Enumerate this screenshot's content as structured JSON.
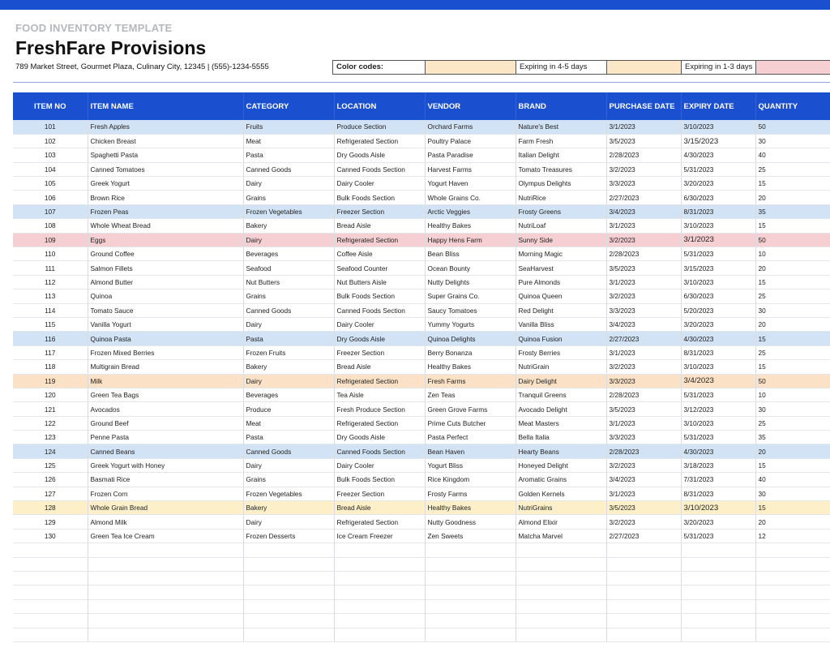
{
  "header": {
    "template_label": "FOOD INVENTORY TEMPLATE",
    "company": "FreshFare Provisions",
    "address": "789 Market Street, Gourmet Plaza, Culinary City, 12345 | (555)-1234-5555"
  },
  "legend": {
    "title": "Color codes:",
    "expiring_4_5": "Expiring in 4-5 days",
    "expiring_1_3": "Expiring in 1-3 days",
    "colors": {
      "expiring_4_5": "#fbe6c6",
      "expiring_1_3": "#f6cfd2"
    }
  },
  "table": {
    "columns": [
      "ITEM NO",
      "ITEM NAME",
      "CATEGORY",
      "LOCATION",
      "VENDOR",
      "BRAND",
      "PURCHASE DATE",
      "EXPIRY DATE",
      "QUANTITY"
    ],
    "rows": [
      {
        "id": "101",
        "name": "Fresh Apples",
        "category": "Fruits",
        "location": "Produce Section",
        "vendor": "Orchard Farms",
        "brand": "Nature's Best",
        "purchase": "3/1/2023",
        "expiry": "3/10/2023",
        "qty": "50",
        "highlight": "blue"
      },
      {
        "id": "102",
        "name": "Chicken Breast",
        "category": "Meat",
        "location": "Refrigerated Section",
        "vendor": "Poultry Palace",
        "brand": "Farm Fresh",
        "purchase": "3/5/2023",
        "expiry": "3/15/2023",
        "qty": "30",
        "highlight": ""
      },
      {
        "id": "103",
        "name": "Spaghetti Pasta",
        "category": "Pasta",
        "location": "Dry Goods Aisle",
        "vendor": "Pasta Paradise",
        "brand": "Italian Delight",
        "purchase": "2/28/2023",
        "expiry": "4/30/2023",
        "qty": "40",
        "highlight": ""
      },
      {
        "id": "104",
        "name": "Canned Tomatoes",
        "category": "Canned Goods",
        "location": "Canned Foods Section",
        "vendor": "Harvest Farms",
        "brand": "Tomato Treasures",
        "purchase": "3/2/2023",
        "expiry": "5/31/2023",
        "qty": "25",
        "highlight": ""
      },
      {
        "id": "105",
        "name": "Greek Yogurt",
        "category": "Dairy",
        "location": "Dairy Cooler",
        "vendor": "Yogurt Haven",
        "brand": "Olympus Delights",
        "purchase": "3/3/2023",
        "expiry": "3/20/2023",
        "qty": "15",
        "highlight": ""
      },
      {
        "id": "106",
        "name": "Brown Rice",
        "category": "Grains",
        "location": "Bulk Foods Section",
        "vendor": "Whole Grains Co.",
        "brand": "NutriRice",
        "purchase": "2/27/2023",
        "expiry": "6/30/2023",
        "qty": "20",
        "highlight": ""
      },
      {
        "id": "107",
        "name": "Frozen Peas",
        "category": "Frozen Vegetables",
        "location": "Freezer Section",
        "vendor": "Arctic Veggies",
        "brand": "Frosty Greens",
        "purchase": "3/4/2023",
        "expiry": "8/31/2023",
        "qty": "35",
        "highlight": "blue"
      },
      {
        "id": "108",
        "name": "Whole Wheat Bread",
        "category": "Bakery",
        "location": "Bread Aisle",
        "vendor": "Healthy Bakes",
        "brand": "NutriLoaf",
        "purchase": "3/1/2023",
        "expiry": "3/10/2023",
        "qty": "15",
        "highlight": ""
      },
      {
        "id": "109",
        "name": "Eggs",
        "category": "Dairy",
        "location": "Refrigerated Section",
        "vendor": "Happy Hens Farm",
        "brand": "Sunny Side",
        "purchase": "3/2/2023",
        "expiry": "3/1/2023",
        "qty": "50",
        "highlight": "red"
      },
      {
        "id": "110",
        "name": "Ground Coffee",
        "category": "Beverages",
        "location": "Coffee Aisle",
        "vendor": "Bean Bliss",
        "brand": "Morning Magic",
        "purchase": "2/28/2023",
        "expiry": "5/31/2023",
        "qty": "10",
        "highlight": ""
      },
      {
        "id": "111",
        "name": "Salmon Fillets",
        "category": "Seafood",
        "location": "Seafood Counter",
        "vendor": "Ocean Bounty",
        "brand": "SeaHarvest",
        "purchase": "3/5/2023",
        "expiry": "3/15/2023",
        "qty": "20",
        "highlight": ""
      },
      {
        "id": "112",
        "name": "Almond Butter",
        "category": "Nut Butters",
        "location": "Nut Butters Aisle",
        "vendor": "Nutty Delights",
        "brand": "Pure Almonds",
        "purchase": "3/1/2023",
        "expiry": "3/10/2023",
        "qty": "15",
        "highlight": ""
      },
      {
        "id": "113",
        "name": "Quinoa",
        "category": "Grains",
        "location": "Bulk Foods Section",
        "vendor": "Super Grains Co.",
        "brand": "Quinoa Queen",
        "purchase": "3/2/2023",
        "expiry": "6/30/2023",
        "qty": "25",
        "highlight": ""
      },
      {
        "id": "114",
        "name": "Tomato Sauce",
        "category": "Canned Goods",
        "location": "Canned Foods Section",
        "vendor": "Saucy Tomatoes",
        "brand": "Red Delight",
        "purchase": "3/3/2023",
        "expiry": "5/20/2023",
        "qty": "30",
        "highlight": ""
      },
      {
        "id": "115",
        "name": "Vanilla Yogurt",
        "category": "Dairy",
        "location": "Dairy Cooler",
        "vendor": "Yummy Yogurts",
        "brand": "Vanilla Bliss",
        "purchase": "3/4/2023",
        "expiry": "3/20/2023",
        "qty": "20",
        "highlight": ""
      },
      {
        "id": "116",
        "name": "Quinoa Pasta",
        "category": "Pasta",
        "location": "Dry Goods Aisle",
        "vendor": "Quinoa Delights",
        "brand": "Quinoa Fusion",
        "purchase": "2/27/2023",
        "expiry": "4/30/2023",
        "qty": "15",
        "highlight": "blue"
      },
      {
        "id": "117",
        "name": "Frozen Mixed Berries",
        "category": "Frozen Fruits",
        "location": "Freezer Section",
        "vendor": "Berry Bonanza",
        "brand": "Frosty Berries",
        "purchase": "3/1/2023",
        "expiry": "8/31/2023",
        "qty": "25",
        "highlight": ""
      },
      {
        "id": "118",
        "name": "Multigrain Bread",
        "category": "Bakery",
        "location": "Bread Aisle",
        "vendor": "Healthy Bakes",
        "brand": "NutriGrain",
        "purchase": "3/2/2023",
        "expiry": "3/10/2023",
        "qty": "15",
        "highlight": ""
      },
      {
        "id": "119",
        "name": "Milk",
        "category": "Dairy",
        "location": "Refrigerated Section",
        "vendor": "Fresh Farms",
        "brand": "Dairy Delight",
        "purchase": "3/3/2023",
        "expiry": "3/4/2023",
        "qty": "50",
        "highlight": "orange"
      },
      {
        "id": "120",
        "name": "Green Tea Bags",
        "category": "Beverages",
        "location": "Tea Aisle",
        "vendor": "Zen Teas",
        "brand": "Tranquil Greens",
        "purchase": "2/28/2023",
        "expiry": "5/31/2023",
        "qty": "10",
        "highlight": ""
      },
      {
        "id": "121",
        "name": "Avocados",
        "category": "Produce",
        "location": "Fresh Produce Section",
        "vendor": "Green Grove Farms",
        "brand": "Avocado Delight",
        "purchase": "3/5/2023",
        "expiry": "3/12/2023",
        "qty": "30",
        "highlight": ""
      },
      {
        "id": "122",
        "name": "Ground Beef",
        "category": "Meat",
        "location": "Refrigerated Section",
        "vendor": "Prime Cuts Butcher",
        "brand": "Meat Masters",
        "purchase": "3/1/2023",
        "expiry": "3/10/2023",
        "qty": "25",
        "highlight": ""
      },
      {
        "id": "123",
        "name": "Penne Pasta",
        "category": "Pasta",
        "location": "Dry Goods Aisle",
        "vendor": "Pasta Perfect",
        "brand": "Bella Italia",
        "purchase": "3/3/2023",
        "expiry": "5/31/2023",
        "qty": "35",
        "highlight": ""
      },
      {
        "id": "124",
        "name": "Canned Beans",
        "category": "Canned Goods",
        "location": "Canned Foods Section",
        "vendor": "Bean Haven",
        "brand": "Hearty Beans",
        "purchase": "2/28/2023",
        "expiry": "4/30/2023",
        "qty": "20",
        "highlight": "blue"
      },
      {
        "id": "125",
        "name": "Greek Yogurt with Honey",
        "category": "Dairy",
        "location": "Dairy Cooler",
        "vendor": "Yogurt Bliss",
        "brand": "Honeyed Delight",
        "purchase": "3/2/2023",
        "expiry": "3/18/2023",
        "qty": "15",
        "highlight": ""
      },
      {
        "id": "126",
        "name": "Basmati Rice",
        "category": "Grains",
        "location": "Bulk Foods Section",
        "vendor": "Rice Kingdom",
        "brand": "Aromatic Grains",
        "purchase": "3/4/2023",
        "expiry": "7/31/2023",
        "qty": "40",
        "highlight": ""
      },
      {
        "id": "127",
        "name": "Frozen Corn",
        "category": "Frozen Vegetables",
        "location": "Freezer Section",
        "vendor": "Frosty Farms",
        "brand": "Golden Kernels",
        "purchase": "3/1/2023",
        "expiry": "8/31/2023",
        "qty": "30",
        "highlight": ""
      },
      {
        "id": "128",
        "name": "Whole Grain Bread",
        "category": "Bakery",
        "location": "Bread Aisle",
        "vendor": "Healthy Bakes",
        "brand": "NutriGrains",
        "purchase": "3/5/2023",
        "expiry": "3/10/2023",
        "qty": "15",
        "highlight": "yellow"
      },
      {
        "id": "129",
        "name": "Almond Milk",
        "category": "Dairy",
        "location": "Refrigerated Section",
        "vendor": "Nutty Goodness",
        "brand": "Almond Elixir",
        "purchase": "3/2/2023",
        "expiry": "3/20/2023",
        "qty": "20",
        "highlight": ""
      },
      {
        "id": "130",
        "name": "Green Tea Ice Cream",
        "category": "Frozen Desserts",
        "location": "Ice Cream Freezer",
        "vendor": "Zen Sweets",
        "brand": "Matcha Marvel",
        "purchase": "2/27/2023",
        "expiry": "5/31/2023",
        "qty": "12",
        "highlight": ""
      }
    ],
    "empty_rows": 7
  }
}
